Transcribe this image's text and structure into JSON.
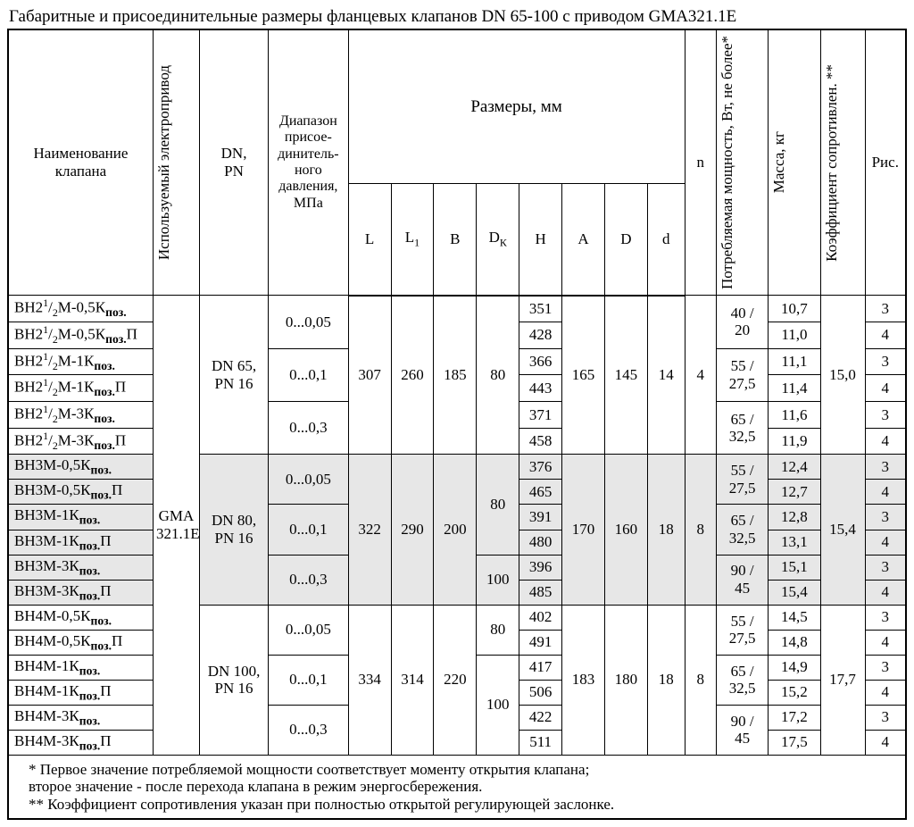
{
  "title": "Габаритные и присоединительные размеры фланцевых клапанов DN 65-100 с приводом GMA321.1E",
  "headers": {
    "name": "Наименование клапана",
    "drive": "Используемый электропривод",
    "dnpn": "DN,\nPN",
    "range": "Диапазон присое-динитель-ного давления, МПа",
    "dims": "Размеры, мм",
    "L": "L",
    "L1": "L₁",
    "B": "B",
    "Dk": "Dₖ",
    "H": "H",
    "A": "A",
    "D": "D",
    "d": "d",
    "n": "n",
    "power": "Потребляемая мощность, Вт, не более*",
    "mass": "Масса, кг",
    "coef": "Коэффициент сопротивлен. **",
    "fig": "Рис."
  },
  "drive_value": "GMA 321.1E",
  "groups": [
    {
      "shade": false,
      "dnpn": "DN 65,\nPN 16",
      "L": "307",
      "L1": "260",
      "B": "185",
      "A": "165",
      "Dbig": "145",
      "dsmall": "14",
      "n": "4",
      "coef": "15,0",
      "pairs": [
        {
          "range": "0...0,05",
          "Dk": "80",
          "power": "40 / 20",
          "rows": [
            {
              "name": "ВН2¹/₂М-0,5К",
              "H": "351",
              "mass": "10,7",
              "fig": "3"
            },
            {
              "name": "ВН2¹/₂М-0,5К",
              "suffix": "П",
              "H": "428",
              "mass": "11,0",
              "fig": "4"
            }
          ]
        },
        {
          "range": "0...0,1",
          "Dk": "_merge_up",
          "power": "55 / 27,5",
          "rows": [
            {
              "name": "ВН2¹/₂М-1К",
              "H": "366",
              "mass": "11,1",
              "fig": "3"
            },
            {
              "name": "ВН2¹/₂М-1К",
              "suffix": "П",
              "H": "443",
              "mass": "11,4",
              "fig": "4"
            }
          ]
        },
        {
          "range": "0...0,3",
          "Dk": "_merge_up",
          "power": "65 / 32,5",
          "rows": [
            {
              "name": "ВН2¹/₂М-3К",
              "H": "371",
              "mass": "11,6",
              "fig": "3"
            },
            {
              "name": "ВН2¹/₂М-3К",
              "suffix": "П",
              "H": "458",
              "mass": "11,9",
              "fig": "4"
            }
          ]
        }
      ]
    },
    {
      "shade": true,
      "dnpn": "DN 80,\nPN 16",
      "L": "322",
      "L1": "290",
      "B": "200",
      "A": "170",
      "Dbig": "160",
      "dsmall": "18",
      "n": "8",
      "coef": "15,4",
      "pairs": [
        {
          "range": "0...0,05",
          "Dk": "80",
          "power": "55 / 27,5",
          "rows": [
            {
              "name": "ВН3М-0,5К",
              "H": "376",
              "mass": "12,4",
              "fig": "3"
            },
            {
              "name": "ВН3М-0,5К",
              "suffix": "П",
              "H": "465",
              "mass": "12,7",
              "fig": "4"
            }
          ]
        },
        {
          "range": "0...0,1",
          "Dk": "_merge_up",
          "power": "65 / 32,5",
          "rows": [
            {
              "name": "ВН3М-1К",
              "H": "391",
              "mass": "12,8",
              "fig": "3"
            },
            {
              "name": "ВН3М-1К",
              "suffix": "П",
              "H": "480",
              "mass": "13,1",
              "fig": "4"
            }
          ]
        },
        {
          "range": "0...0,3",
          "Dk": "100",
          "power": "90 / 45",
          "rows": [
            {
              "name": "ВН3М-3К",
              "H": "396",
              "mass": "15,1",
              "fig": "3"
            },
            {
              "name": "ВН3М-3К",
              "suffix": "П",
              "H": "485",
              "mass": "15,4",
              "fig": "4"
            }
          ]
        }
      ]
    },
    {
      "shade": false,
      "dnpn": "DN 100,\nPN 16",
      "L": "334",
      "L1": "314",
      "B": "220",
      "A": "183",
      "Dbig": "180",
      "dsmall": "18",
      "n": "8",
      "coef": "17,7",
      "pairs": [
        {
          "range": "0...0,05",
          "Dk": "80",
          "power": "55 / 27,5",
          "rows": [
            {
              "name": "ВН4М-0,5К",
              "H": "402",
              "mass": "14,5",
              "fig": "3"
            },
            {
              "name": "ВН4М-0,5К",
              "suffix": "П",
              "H": "491",
              "mass": "14,8",
              "fig": "4"
            }
          ]
        },
        {
          "range": "0...0,1",
          "Dk": "100",
          "power": "65 / 32,5",
          "rows": [
            {
              "name": "ВН4М-1К",
              "H": "417",
              "mass": "14,9",
              "fig": "3"
            },
            {
              "name": "ВН4М-1К",
              "suffix": "П",
              "H": "506",
              "mass": "15,2",
              "fig": "4"
            }
          ]
        },
        {
          "range": "0...0,3",
          "Dk": "_merge_up",
          "power": "90 / 45",
          "rows": [
            {
              "name": "ВН4М-3К",
              "H": "422",
              "mass": "17,2",
              "fig": "3"
            },
            {
              "name": "ВН4М-3К",
              "suffix": "П",
              "H": "511",
              "mass": "17,5",
              "fig": "4"
            }
          ]
        }
      ]
    }
  ],
  "footnotes": [
    "* Первое значение потребляемой мощности соответствует моменту открытия клапана;",
    "   второе значение - после перехода клапана в режим энергосбережения.",
    "** Коэффициент сопротивления указан при полностью открытой регулирующей заслонке."
  ],
  "colwidths": {
    "name": 156,
    "drive": 50,
    "dnpn": 74,
    "range": 86,
    "L": 46,
    "L1": 46,
    "B": 46,
    "Dk": 46,
    "H": 46,
    "A": 46,
    "D": 46,
    "d": 40,
    "n": 34,
    "power": 56,
    "mass": 56,
    "coef": 48,
    "fig": 44
  }
}
